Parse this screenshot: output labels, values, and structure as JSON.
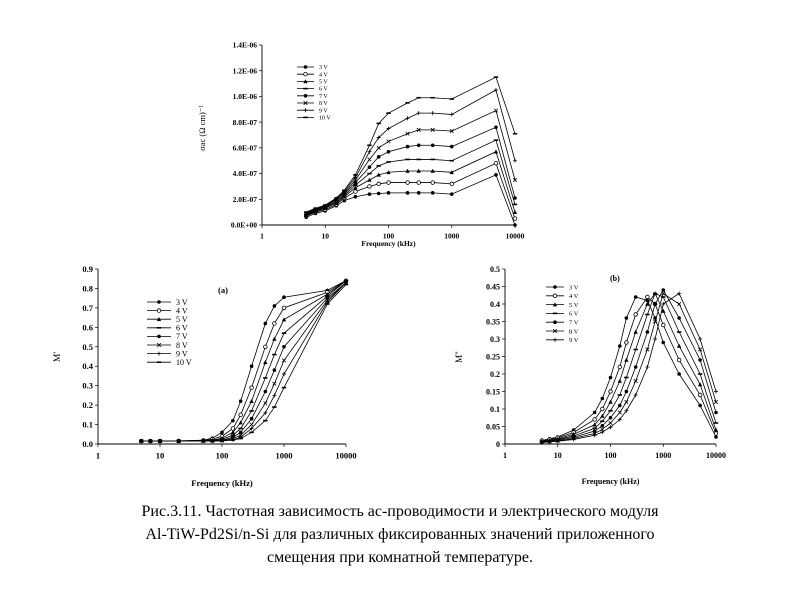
{
  "caption": {
    "line1": "Рис.3.11. Частотная зависимость ас-проводимости и электрического модуля",
    "line2": "Al-TiW-Pd2Si/n-Si для различных фиксированных  значений приложенного",
    "line3": "смещения при комнатной температуре."
  },
  "chart_data": [
    {
      "id": "sigma",
      "type": "line",
      "title": "",
      "xlabel": "Frequency (kHz)",
      "ylabel": "σac (Ω cm)⁻¹",
      "xscale": "log",
      "xlim": [
        1,
        10000
      ],
      "ylim": [
        0,
        1.4e-06
      ],
      "xticks": [
        1,
        10,
        100,
        1000,
        10000
      ],
      "xtick_labels": [
        "1",
        "10",
        "100",
        "1000",
        "10000"
      ],
      "yticks": [
        0,
        2e-07,
        4e-07,
        6e-07,
        8e-07,
        1e-06,
        1.2e-06,
        1.4e-06
      ],
      "ytick_labels": [
        "0.0E+00",
        "2.0E-07",
        "4.0E-07",
        "6.0E-07",
        "8.0E-07",
        "1.0E-06",
        "1.2E-06",
        "1.4E-06"
      ],
      "legend_position": "top-left",
      "x": [
        5,
        7,
        10,
        15,
        20,
        30,
        50,
        70,
        100,
        200,
        300,
        500,
        1000,
        5000,
        10000
      ],
      "series": [
        {
          "name": "3 V",
          "values": [
            6e-08,
            9e-08,
            1.1e-07,
            1.5e-07,
            1.9e-07,
            2.2e-07,
            2.4e-07,
            2.45e-07,
            2.5e-07,
            2.5e-07,
            2.5e-07,
            2.5e-07,
            2.4e-07,
            3.9e-07,
            0.0
          ]
        },
        {
          "name": "4 V",
          "values": [
            7e-08,
            1e-07,
            1.2e-07,
            1.6e-07,
            2.1e-07,
            2.6e-07,
            3e-07,
            3.2e-07,
            3.3e-07,
            3.3e-07,
            3.3e-07,
            3.3e-07,
            3.2e-07,
            4.8e-07,
            5e-08
          ]
        },
        {
          "name": "5 V",
          "values": [
            7.5e-08,
            1.05e-07,
            1.3e-07,
            1.7e-07,
            2.2e-07,
            2.9e-07,
            3.5e-07,
            3.9e-07,
            4.1e-07,
            4.2e-07,
            4.2e-07,
            4.2e-07,
            4.1e-07,
            5.7e-07,
            1e-07
          ]
        },
        {
          "name": "6 V",
          "values": [
            8e-08,
            1.1e-07,
            1.35e-07,
            1.8e-07,
            2.3e-07,
            3.1e-07,
            4e-07,
            4.6e-07,
            4.9e-07,
            5.1e-07,
            5.1e-07,
            5.1e-07,
            5e-07,
            6.6e-07,
            1.6e-07
          ]
        },
        {
          "name": "7 V",
          "values": [
            8.5e-08,
            1.15e-07,
            1.4e-07,
            1.9e-07,
            2.4e-07,
            3.3e-07,
            4.5e-07,
            5.3e-07,
            5.7e-07,
            6.1e-07,
            6.2e-07,
            6.2e-07,
            6.1e-07,
            7.6e-07,
            2.1e-07
          ]
        },
        {
          "name": "8 V",
          "values": [
            9e-08,
            1.2e-07,
            1.45e-07,
            2e-07,
            2.5e-07,
            3.5e-07,
            5.1e-07,
            6e-07,
            6.5e-07,
            7.1e-07,
            7.4e-07,
            7.4e-07,
            7.3e-07,
            8.9e-07,
            3.5e-07
          ]
        },
        {
          "name": "9 V",
          "values": [
            9.5e-08,
            1.25e-07,
            1.5e-07,
            2.05e-07,
            2.6e-07,
            3.7e-07,
            5.7e-07,
            6.8e-07,
            7.5e-07,
            8.3e-07,
            8.7e-07,
            8.7e-07,
            8.6e-07,
            1.05e-06,
            5e-07
          ]
        },
        {
          "name": "10 V",
          "values": [
            1e-07,
            1.3e-07,
            1.55e-07,
            2.1e-07,
            2.7e-07,
            3.9e-07,
            6.2e-07,
            7.9e-07,
            8.7e-07,
            9.5e-07,
            9.9e-07,
            9.9e-07,
            9.8e-07,
            1.15e-06,
            7.1e-07
          ]
        }
      ]
    },
    {
      "id": "mprime",
      "type": "line",
      "title": "(a)",
      "xlabel": "Frequency (kHz)",
      "ylabel": "M'",
      "xscale": "log",
      "xlim": [
        1,
        10000
      ],
      "ylim": [
        0,
        0.9
      ],
      "xticks": [
        1,
        10,
        100,
        1000,
        10000
      ],
      "xtick_labels": [
        "1",
        "10",
        "100",
        "1000",
        "10000"
      ],
      "yticks": [
        0,
        0.1,
        0.2,
        0.3,
        0.4,
        0.5,
        0.6,
        0.7,
        0.8,
        0.9
      ],
      "ytick_labels": [
        "0.0",
        "0.1",
        "0.2",
        "0.3",
        "0.4",
        "0.5",
        "0.6",
        "0.7",
        "0.8",
        "0.9"
      ],
      "legend_position": "top-left",
      "x": [
        5,
        7,
        10,
        20,
        50,
        70,
        100,
        150,
        200,
        300,
        500,
        700,
        1000,
        5000,
        10000
      ],
      "series": [
        {
          "name": "3 V",
          "values": [
            0.015,
            0.015,
            0.015,
            0.016,
            0.02,
            0.03,
            0.06,
            0.12,
            0.22,
            0.4,
            0.62,
            0.71,
            0.755,
            0.79,
            0.84
          ]
        },
        {
          "name": "4 V",
          "values": [
            0.015,
            0.015,
            0.015,
            0.016,
            0.018,
            0.025,
            0.04,
            0.08,
            0.15,
            0.29,
            0.5,
            0.62,
            0.7,
            0.78,
            0.84
          ]
        },
        {
          "name": "5 V",
          "values": [
            0.015,
            0.015,
            0.015,
            0.016,
            0.017,
            0.02,
            0.03,
            0.06,
            0.11,
            0.22,
            0.42,
            0.54,
            0.64,
            0.77,
            0.84
          ]
        },
        {
          "name": "6 V",
          "values": [
            0.015,
            0.015,
            0.015,
            0.015,
            0.016,
            0.018,
            0.025,
            0.045,
            0.08,
            0.17,
            0.34,
            0.46,
            0.57,
            0.76,
            0.84
          ]
        },
        {
          "name": "7 V",
          "values": [
            0.015,
            0.015,
            0.015,
            0.015,
            0.016,
            0.017,
            0.02,
            0.035,
            0.06,
            0.13,
            0.27,
            0.38,
            0.5,
            0.75,
            0.83
          ]
        },
        {
          "name": "8 V",
          "values": [
            0.015,
            0.015,
            0.015,
            0.015,
            0.015,
            0.016,
            0.018,
            0.028,
            0.045,
            0.1,
            0.21,
            0.31,
            0.43,
            0.74,
            0.83
          ]
        },
        {
          "name": "9 V",
          "values": [
            0.015,
            0.015,
            0.015,
            0.015,
            0.015,
            0.015,
            0.017,
            0.022,
            0.035,
            0.08,
            0.16,
            0.25,
            0.36,
            0.73,
            0.83
          ]
        },
        {
          "name": "10 V",
          "values": [
            0.015,
            0.015,
            0.015,
            0.015,
            0.015,
            0.015,
            0.016,
            0.02,
            0.028,
            0.06,
            0.12,
            0.19,
            0.29,
            0.72,
            0.82
          ]
        }
      ]
    },
    {
      "id": "mdoubleprime",
      "type": "line",
      "title": "(b)",
      "xlabel": "Frequency (kHz)",
      "ylabel": "M\"",
      "xscale": "log",
      "xlim": [
        1,
        10000
      ],
      "ylim": [
        0,
        0.5
      ],
      "xticks": [
        1,
        10,
        100,
        1000,
        10000
      ],
      "xtick_labels": [
        "1",
        "10",
        "100",
        "1000",
        "10000"
      ],
      "yticks": [
        0,
        0.05,
        0.1,
        0.15,
        0.2,
        0.25,
        0.3,
        0.35,
        0.4,
        0.45,
        0.5
      ],
      "ytick_labels": [
        "0",
        "0.05",
        "0.1",
        "0.15",
        "0.2",
        "0.25",
        "0.3",
        "0.35",
        "0.4",
        "0.45",
        "0.5"
      ],
      "legend_position": "top-left",
      "x": [
        5,
        7,
        10,
        20,
        50,
        70,
        100,
        150,
        200,
        300,
        500,
        700,
        1000,
        2000,
        5000,
        10000
      ],
      "series": [
        {
          "name": "3 V",
          "values": [
            0.01,
            0.015,
            0.02,
            0.04,
            0.09,
            0.13,
            0.19,
            0.28,
            0.36,
            0.42,
            0.41,
            0.36,
            0.29,
            0.2,
            0.11,
            0.02
          ]
        },
        {
          "name": "4 V",
          "values": [
            0.01,
            0.013,
            0.018,
            0.033,
            0.07,
            0.1,
            0.15,
            0.22,
            0.29,
            0.37,
            0.42,
            0.4,
            0.34,
            0.24,
            0.14,
            0.03
          ]
        },
        {
          "name": "5 V",
          "values": [
            0.008,
            0.011,
            0.015,
            0.028,
            0.055,
            0.08,
            0.12,
            0.18,
            0.24,
            0.32,
            0.4,
            0.43,
            0.38,
            0.28,
            0.17,
            0.04
          ]
        },
        {
          "name": "6 V",
          "values": [
            0.007,
            0.009,
            0.013,
            0.023,
            0.045,
            0.065,
            0.095,
            0.14,
            0.19,
            0.27,
            0.37,
            0.43,
            0.42,
            0.32,
            0.2,
            0.06
          ]
        },
        {
          "name": "7 V",
          "values": [
            0.006,
            0.008,
            0.011,
            0.019,
            0.037,
            0.052,
            0.075,
            0.11,
            0.15,
            0.22,
            0.32,
            0.4,
            0.44,
            0.36,
            0.24,
            0.09
          ]
        },
        {
          "name": "8 V",
          "values": [
            0.005,
            0.007,
            0.009,
            0.016,
            0.03,
            0.042,
            0.06,
            0.09,
            0.12,
            0.18,
            0.27,
            0.35,
            0.43,
            0.4,
            0.27,
            0.12
          ]
        },
        {
          "name": "9 V",
          "values": [
            0.004,
            0.006,
            0.008,
            0.013,
            0.025,
            0.034,
            0.048,
            0.07,
            0.095,
            0.14,
            0.22,
            0.3,
            0.4,
            0.43,
            0.3,
            0.15
          ]
        }
      ]
    }
  ]
}
